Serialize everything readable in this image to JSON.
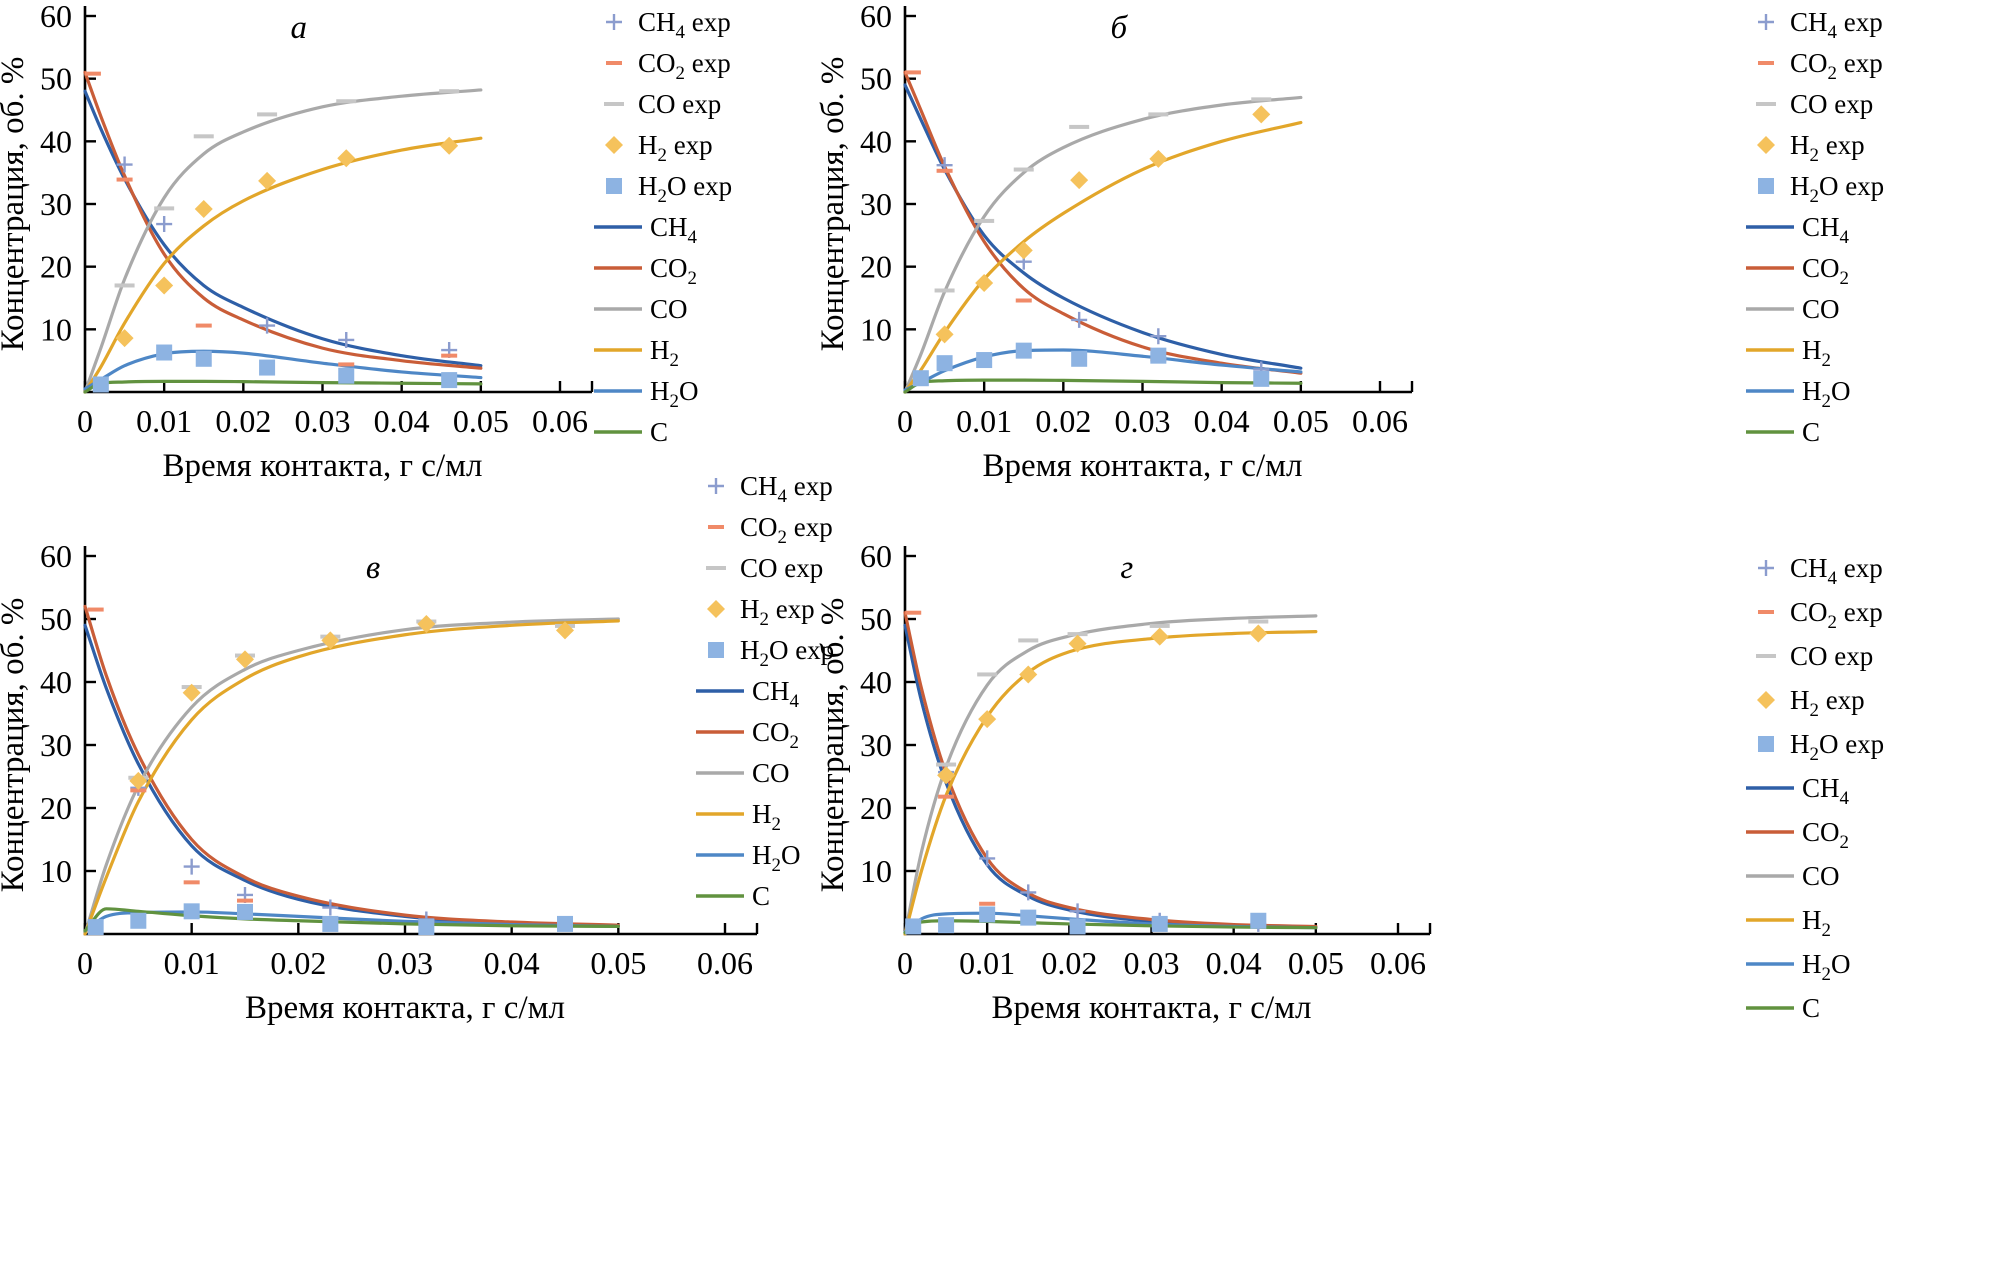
{
  "figure": {
    "x_axis_label": "Время контакта, г с/мл",
    "y_axis_label": "Концентрация, об. %",
    "x_ticks": [
      "0",
      "0.01",
      "0.02",
      "0.03",
      "0.04",
      "0.05",
      "0.06"
    ],
    "y_ticks": [
      "10",
      "20",
      "30",
      "40",
      "50",
      "60"
    ],
    "x_range": [
      0,
      0.06
    ],
    "y_range": [
      0,
      60
    ]
  },
  "legend": {
    "entries": [
      {
        "id": "ch4-exp",
        "label": "CH4 exp",
        "type": "marker",
        "shape": "plus",
        "color": "#8b9cce"
      },
      {
        "id": "co2-exp",
        "label": "CO2 exp",
        "type": "marker",
        "shape": "dash-short",
        "color": "#f08a68"
      },
      {
        "id": "co-exp",
        "label": "CO exp",
        "type": "marker",
        "shape": "dash-long",
        "color": "#c6c6c6"
      },
      {
        "id": "h2-exp",
        "label": "H2 exp",
        "type": "marker",
        "shape": "diamond",
        "color": "#f5c25c"
      },
      {
        "id": "h2o-exp",
        "label": "H2O exp",
        "type": "marker",
        "shape": "square",
        "color": "#8db3e2"
      },
      {
        "id": "ch4",
        "label": "CH4",
        "type": "line",
        "color": "#2e5fa7"
      },
      {
        "id": "co2",
        "label": "CO2",
        "type": "line",
        "color": "#c95d38"
      },
      {
        "id": "co",
        "label": "CO",
        "type": "line",
        "color": "#a9a9a9"
      },
      {
        "id": "h2",
        "label": "H2",
        "type": "line",
        "color": "#e2a62a"
      },
      {
        "id": "h2o",
        "label": "H2O",
        "type": "line",
        "color": "#4e87c6"
      },
      {
        "id": "c",
        "label": "C",
        "type": "line",
        "color": "#61923f"
      }
    ]
  },
  "chart_data": [
    {
      "type": "line",
      "panel": "а",
      "xlabel": "Время контакта, г с/мл",
      "ylabel": "Концентрация, об. %",
      "xlim": [
        0,
        0.06
      ],
      "ylim": [
        0,
        60
      ],
      "curve_x": [
        0,
        0.002,
        0.005,
        0.01,
        0.015,
        0.02,
        0.03,
        0.04,
        0.05
      ],
      "curves": [
        {
          "name": "CH4",
          "y": [
            48,
            42,
            34,
            23.5,
            17,
            13.5,
            8.5,
            5.8,
            4.2
          ]
        },
        {
          "name": "CO2",
          "y": [
            51,
            44,
            34.5,
            22,
            15,
            11.5,
            7,
            5,
            3.8
          ]
        },
        {
          "name": "CO",
          "y": [
            0,
            7,
            18,
            31,
            38,
            41.5,
            45.5,
            47.2,
            48.2
          ]
        },
        {
          "name": "H2",
          "y": [
            0,
            4,
            11,
            20.5,
            26.5,
            30.5,
            35.5,
            38.6,
            40.5
          ]
        },
        {
          "name": "H2O",
          "y": [
            0.5,
            2,
            4.2,
            6.1,
            6.5,
            6.2,
            4.6,
            3.2,
            2.3
          ]
        },
        {
          "name": "C",
          "y": [
            0,
            1.4,
            1.6,
            1.7,
            1.7,
            1.65,
            1.5,
            1.4,
            1.3
          ]
        }
      ],
      "markers": [
        {
          "name": "CH4 exp",
          "points": [
            [
              0.005,
              36.3
            ],
            [
              0.01,
              26.8
            ],
            [
              0.023,
              10.6
            ],
            [
              0.033,
              8.3
            ],
            [
              0.046,
              6.7
            ]
          ]
        },
        {
          "name": "CO2 exp",
          "points": [
            [
              0.001,
              50.8
            ],
            [
              0.005,
              33.9
            ],
            [
              0.015,
              10.6
            ],
            [
              0.033,
              4.4
            ],
            [
              0.046,
              5.8
            ]
          ]
        },
        {
          "name": "CO exp",
          "points": [
            [
              0.005,
              17.0
            ],
            [
              0.01,
              29.3
            ],
            [
              0.015,
              40.8
            ],
            [
              0.023,
              44.3
            ],
            [
              0.033,
              46.4
            ],
            [
              0.046,
              48.0
            ]
          ]
        },
        {
          "name": "H2 exp",
          "points": [
            [
              0.005,
              8.6
            ],
            [
              0.01,
              17.0
            ],
            [
              0.015,
              29.2
            ],
            [
              0.023,
              33.7
            ],
            [
              0.033,
              37.3
            ],
            [
              0.046,
              39.3
            ]
          ]
        },
        {
          "name": "H2O exp",
          "points": [
            [
              0.002,
              1.2
            ],
            [
              0.01,
              6.3
            ],
            [
              0.015,
              5.3
            ],
            [
              0.023,
              3.9
            ],
            [
              0.033,
              2.6
            ],
            [
              0.046,
              1.9
            ]
          ]
        }
      ]
    },
    {
      "type": "line",
      "panel": "б",
      "xlabel": "Время контакта, г с/мл",
      "ylabel": "Концентрация, об. %",
      "xlim": [
        0,
        0.06
      ],
      "ylim": [
        0,
        60
      ],
      "curve_x": [
        0,
        0.002,
        0.005,
        0.01,
        0.015,
        0.02,
        0.03,
        0.04,
        0.05
      ],
      "curves": [
        {
          "name": "CH4",
          "y": [
            49,
            43.5,
            35.5,
            25,
            19,
            15,
            9.5,
            6,
            3.8
          ]
        },
        {
          "name": "CO2",
          "y": [
            51,
            45,
            36,
            24,
            16.5,
            12.5,
            7.2,
            4.6,
            3
          ]
        },
        {
          "name": "CO",
          "y": [
            0,
            6,
            16,
            28,
            35,
            39,
            43.5,
            45.8,
            47
          ]
        },
        {
          "name": "H2",
          "y": [
            0,
            3.5,
            9.5,
            18,
            24,
            28.5,
            35.5,
            40,
            43
          ]
        },
        {
          "name": "H2O",
          "y": [
            0.3,
            1.5,
            3.4,
            5.6,
            6.6,
            6.7,
            5.7,
            4.3,
            3.2
          ]
        },
        {
          "name": "C",
          "y": [
            0,
            1.5,
            1.8,
            1.9,
            1.9,
            1.85,
            1.7,
            1.5,
            1.4
          ]
        }
      ],
      "markers": [
        {
          "name": "CH4 exp",
          "points": [
            [
              0.005,
              36.2
            ],
            [
              0.015,
              20.8
            ],
            [
              0.022,
              11.5
            ],
            [
              0.032,
              8.9
            ],
            [
              0.045,
              3.6
            ]
          ]
        },
        {
          "name": "CO2 exp",
          "points": [
            [
              0.001,
              51.0
            ],
            [
              0.005,
              35.3
            ],
            [
              0.015,
              14.6
            ],
            [
              0.032,
              5.2
            ]
          ]
        },
        {
          "name": "CO exp",
          "points": [
            [
              0.005,
              16.2
            ],
            [
              0.01,
              27.3
            ],
            [
              0.015,
              35.5
            ],
            [
              0.022,
              42.3
            ],
            [
              0.032,
              44.3
            ],
            [
              0.045,
              46.7
            ]
          ]
        },
        {
          "name": "H2 exp",
          "points": [
            [
              0.005,
              9.2
            ],
            [
              0.01,
              17.4
            ],
            [
              0.015,
              22.6
            ],
            [
              0.022,
              33.8
            ],
            [
              0.032,
              37.2
            ],
            [
              0.045,
              44.3
            ]
          ]
        },
        {
          "name": "H2O exp",
          "points": [
            [
              0.002,
              2.2
            ],
            [
              0.005,
              4.6
            ],
            [
              0.01,
              5.1
            ],
            [
              0.015,
              6.6
            ],
            [
              0.022,
              5.3
            ],
            [
              0.032,
              5.8
            ],
            [
              0.045,
              2.1
            ]
          ]
        }
      ]
    },
    {
      "type": "line",
      "panel": "в",
      "xlabel": "Время контакта, г с/мл",
      "ylabel": "Концентрация, об. %",
      "xlim": [
        0,
        0.06
      ],
      "ylim": [
        0,
        60
      ],
      "curve_x": [
        0,
        0.002,
        0.005,
        0.01,
        0.015,
        0.02,
        0.03,
        0.04,
        0.05
      ],
      "curves": [
        {
          "name": "CH4",
          "y": [
            49,
            39,
            27,
            14,
            8.5,
            5.5,
            2.8,
            1.7,
            1.3
          ]
        },
        {
          "name": "CO2",
          "y": [
            52,
            41,
            28.5,
            15,
            9,
            6,
            3,
            1.9,
            1.4
          ]
        },
        {
          "name": "CO",
          "y": [
            0,
            11,
            23.5,
            36,
            42,
            45,
            48.3,
            49.5,
            50
          ]
        },
        {
          "name": "H2",
          "y": [
            0,
            9,
            21,
            34,
            40.5,
            44,
            47.5,
            49,
            49.7
          ]
        },
        {
          "name": "H2O",
          "y": [
            0.5,
            2.8,
            3.4,
            3.5,
            3.2,
            2.8,
            2,
            1.5,
            1.2
          ]
        },
        {
          "name": "C",
          "y": [
            0.5,
            4,
            3.6,
            2.9,
            2.4,
            2.1,
            1.6,
            1.3,
            1.2
          ]
        }
      ],
      "markers": [
        {
          "name": "CH4 exp",
          "points": [
            [
              0.005,
              23.2
            ],
            [
              0.01,
              10.7
            ],
            [
              0.015,
              6.2
            ],
            [
              0.023,
              4.2
            ],
            [
              0.032,
              2.3
            ]
          ]
        },
        {
          "name": "CO2 exp",
          "points": [
            [
              0.001,
              51.5
            ],
            [
              0.005,
              22.8
            ],
            [
              0.01,
              8.2
            ],
            [
              0.015,
              5.3
            ],
            [
              0.023,
              2.4
            ],
            [
              0.032,
              1.8
            ]
          ]
        },
        {
          "name": "CO exp",
          "points": [
            [
              0.005,
              24.8
            ],
            [
              0.01,
              39.2
            ],
            [
              0.015,
              44.2
            ],
            [
              0.023,
              47.2
            ],
            [
              0.032,
              49.6
            ],
            [
              0.045,
              48.9
            ]
          ]
        },
        {
          "name": "H2 exp",
          "points": [
            [
              0.005,
              24.3
            ],
            [
              0.01,
              38.3
            ],
            [
              0.015,
              43.6
            ],
            [
              0.023,
              46.6
            ],
            [
              0.032,
              49.2
            ],
            [
              0.045,
              48.2
            ]
          ]
        },
        {
          "name": "H2O exp",
          "points": [
            [
              0.001,
              1.1
            ],
            [
              0.005,
              2.1
            ],
            [
              0.01,
              3.6
            ],
            [
              0.015,
              3.5
            ],
            [
              0.023,
              1.6
            ],
            [
              0.032,
              1.1
            ],
            [
              0.045,
              1.6
            ]
          ]
        }
      ]
    },
    {
      "type": "line",
      "panel": "г",
      "xlabel": "Время контакта, г с/мл",
      "ylabel": "Концентрация, об. %",
      "xlim": [
        0,
        0.06
      ],
      "ylim": [
        0,
        60
      ],
      "curve_x": [
        0,
        0.002,
        0.005,
        0.01,
        0.015,
        0.02,
        0.03,
        0.04,
        0.05
      ],
      "curves": [
        {
          "name": "CH4",
          "y": [
            49,
            37,
            24,
            11,
            6,
            3.8,
            2,
            1.4,
            1.1
          ]
        },
        {
          "name": "CO2",
          "y": [
            51,
            39,
            25.5,
            12,
            6.5,
            4.2,
            2.3,
            1.5,
            1.2
          ]
        },
        {
          "name": "CO",
          "y": [
            0,
            13,
            26.5,
            39.5,
            45,
            47.3,
            49.3,
            50.1,
            50.5
          ]
        },
        {
          "name": "H2",
          "y": [
            0,
            10,
            22,
            34.5,
            41.5,
            44.8,
            46.9,
            47.7,
            48
          ]
        },
        {
          "name": "H2O",
          "y": [
            0.3,
            2.4,
            3.2,
            3.3,
            2.9,
            2.4,
            1.6,
            1.2,
            1
          ]
        },
        {
          "name": "C",
          "y": [
            0.2,
            1.9,
            2.1,
            2,
            1.8,
            1.6,
            1.3,
            1.1,
            1
          ]
        }
      ],
      "markers": [
        {
          "name": "CH4 exp",
          "points": [
            [
              0.005,
              25.7
            ],
            [
              0.01,
              12.0
            ],
            [
              0.015,
              6.6
            ],
            [
              0.021,
              3.6
            ],
            [
              0.031,
              2.1
            ],
            [
              0.043,
              1.6
            ]
          ]
        },
        {
          "name": "CO2 exp",
          "points": [
            [
              0.001,
              51.0
            ],
            [
              0.005,
              21.8
            ],
            [
              0.01,
              4.8
            ]
          ]
        },
        {
          "name": "CO exp",
          "points": [
            [
              0.005,
              26.9
            ],
            [
              0.01,
              41.2
            ],
            [
              0.015,
              46.6
            ],
            [
              0.021,
              47.6
            ],
            [
              0.031,
              48.9
            ],
            [
              0.043,
              49.6
            ]
          ]
        },
        {
          "name": "H2 exp",
          "points": [
            [
              0.005,
              25.2
            ],
            [
              0.01,
              34.1
            ],
            [
              0.015,
              41.2
            ],
            [
              0.021,
              46.1
            ],
            [
              0.031,
              47.2
            ],
            [
              0.043,
              47.7
            ]
          ]
        },
        {
          "name": "H2O exp",
          "points": [
            [
              0.001,
              1.2
            ],
            [
              0.005,
              1.4
            ],
            [
              0.01,
              3.1
            ],
            [
              0.015,
              2.6
            ],
            [
              0.021,
              1.2
            ],
            [
              0.031,
              1.6
            ],
            [
              0.043,
              2.1
            ]
          ]
        }
      ]
    }
  ]
}
